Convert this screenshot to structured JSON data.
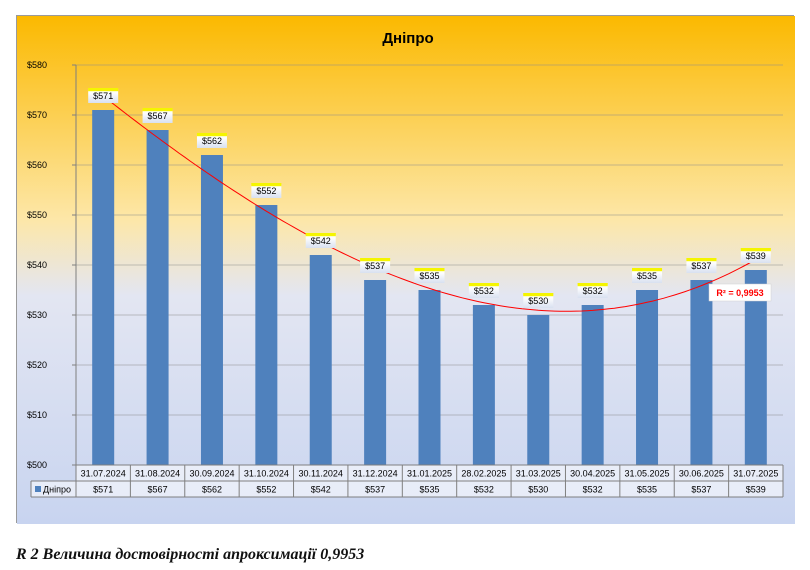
{
  "chart_data": {
    "type": "bar",
    "title": "Дніпро",
    "categories": [
      "31.07.2024",
      "31.08.2024",
      "30.09.2024",
      "31.10.2024",
      "30.11.2024",
      "31.12.2024",
      "31.01.2025",
      "28.02.2025",
      "31.03.2025",
      "30.04.2025",
      "31.05.2025",
      "30.06.2025",
      "31.07.2025"
    ],
    "series": [
      {
        "name": "Дніпро",
        "values": [
          571,
          567,
          562,
          552,
          542,
          537,
          535,
          532,
          530,
          532,
          535,
          537,
          539
        ],
        "color": "#4f81bd"
      }
    ],
    "value_labels": [
      "$571",
      "$567",
      "$562",
      "$552",
      "$542",
      "$537",
      "$535",
      "$532",
      "$530",
      "$532",
      "$535",
      "$537",
      "$539"
    ],
    "ylim": [
      500,
      580
    ],
    "yticks": [
      "$500",
      "$510",
      "$520",
      "$530",
      "$540",
      "$550",
      "$560",
      "$570",
      "$580"
    ],
    "ytick_values": [
      500,
      510,
      520,
      530,
      540,
      550,
      560,
      570,
      580
    ],
    "grid": true,
    "data_table": true,
    "trendline": {
      "type": "polynomial",
      "color": "#ff0000",
      "r2_label": "R² = 0,9953"
    },
    "colors": {
      "bar": "#4f81bd",
      "trend": "#ff0000",
      "bg_top": "#fbb900",
      "bg_bottom": "#c8d4f0",
      "label_box": "#f5f500"
    }
  },
  "caption": "R 2 Величина достовірності апроксимації 0,9953"
}
